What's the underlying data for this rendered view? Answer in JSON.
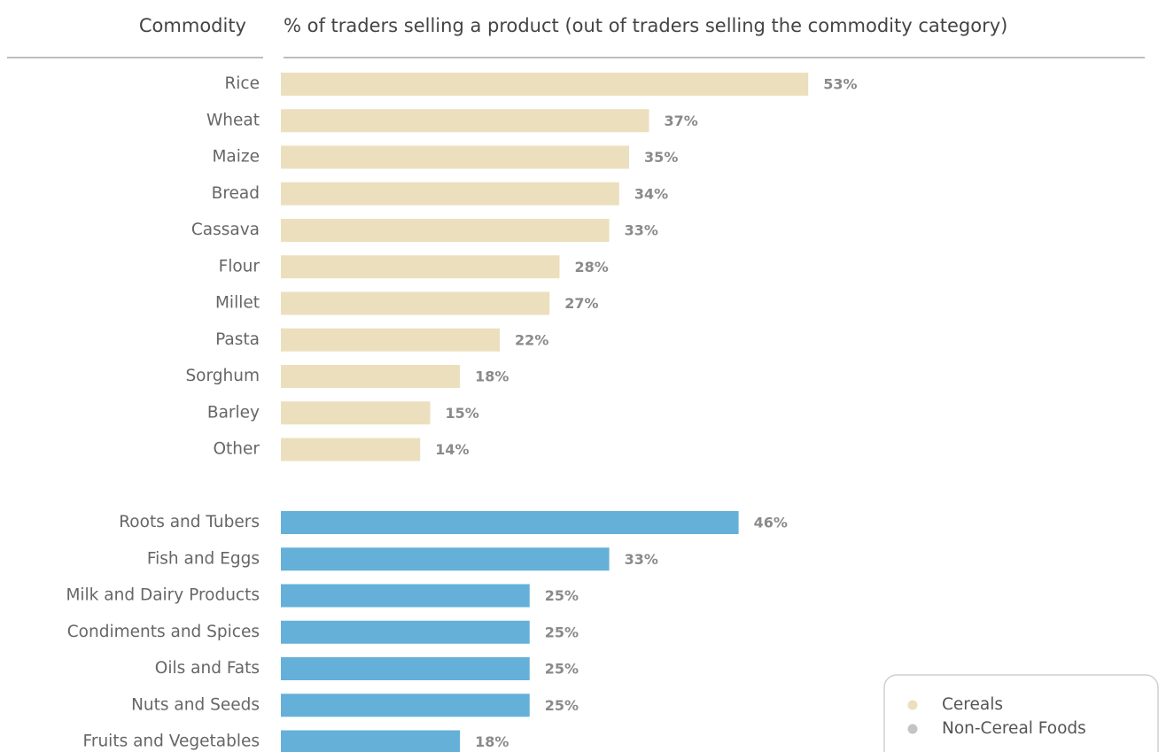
{
  "chart_data": {
    "type": "bar",
    "orientation": "horizontal",
    "category_header": "Commodity",
    "value_header": "% of traders selling a product (out of traders selling the commodity category)",
    "series": [
      {
        "name": "Cereals",
        "color": "#ebdfbd",
        "legend_color": "#ebdfbd",
        "categories": [
          "Rice",
          "Wheat",
          "Maize",
          "Bread",
          "Cassava",
          "Flour",
          "Millet",
          "Pasta",
          "Sorghum",
          "Barley",
          "Other"
        ],
        "values": [
          53,
          37,
          35,
          34,
          33,
          28,
          27,
          22,
          18,
          15,
          14
        ],
        "value_labels": [
          "53%",
          "37%",
          "35%",
          "34%",
          "33%",
          "28%",
          "27%",
          "22%",
          "18%",
          "15%",
          "14%"
        ]
      },
      {
        "name": "Non-Cereal Foods",
        "color": "#64b0d8",
        "legend_color": "#c4c4c4",
        "categories": [
          "Roots and Tubers",
          "Fish and Eggs",
          "Milk and Dairy Products",
          "Condiments and Spices",
          "Oils and Fats",
          "Nuts and Seeds",
          "Fruits and Vegetables"
        ],
        "values": [
          46,
          33,
          25,
          25,
          25,
          25,
          18
        ],
        "value_labels": [
          "46%",
          "33%",
          "25%",
          "25%",
          "25%",
          "25%",
          "18%"
        ]
      }
    ]
  }
}
